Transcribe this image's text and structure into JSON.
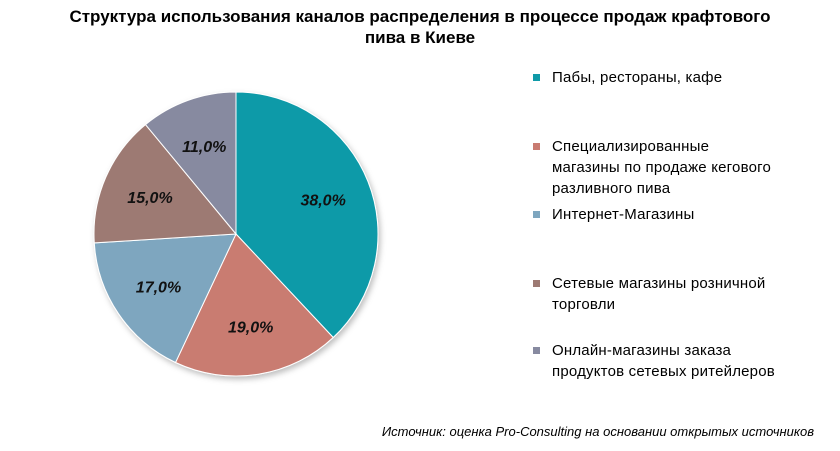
{
  "chart_data": {
    "type": "pie",
    "title": "Структура использования каналов распределения в процессе продаж крафтового пива в Киеве",
    "title_lines": [
      "Структура использования каналов распределения в процессе продаж крафтового",
      "пива в Киеве"
    ],
    "unit": "%",
    "slices": [
      {
        "label": "Пабы, рестораны, кафе",
        "value": 38.0,
        "data_label": "38,0%",
        "color": "#0f9aa8"
      },
      {
        "label": "Специализированные магазины по продаже кегового разливного пива",
        "value": 19.0,
        "data_label": "19,0%",
        "color": "#c97b71"
      },
      {
        "label": "Интернет-Магазины",
        "value": 17.0,
        "data_label": "17,0%",
        "color": "#7ea6bf"
      },
      {
        "label": "Сетевые магазины розничной торговли",
        "value": 15.0,
        "data_label": "15,0%",
        "color": "#9d7a73"
      },
      {
        "label": "Онлайн-магазины заказа продуктов сетевых ритейлеров",
        "value": 11.0,
        "data_label": "11,0%",
        "color": "#878aa0"
      }
    ],
    "legend_position": "right",
    "start_angle": "12 o'clock, clockwise"
  },
  "legend": {
    "items": [
      {
        "lines": [
          "Пабы,  рестораны,  кафе"
        ]
      },
      {
        "lines": [
          "Специализированные",
          "магазины  по продаже  кегового",
          "разливного  пива"
        ]
      },
      {
        "lines": [
          "Интернет-Магазины"
        ]
      },
      {
        "lines": [
          "Сетевые  магазины  розничной",
          "торговли"
        ]
      },
      {
        "lines": [
          "Онлайн-магазины  заказа",
          "продуктов  сетевых  ритейлеров"
        ]
      }
    ]
  },
  "source": "Источник: оценка Pro-Consulting на основании открытых источников"
}
